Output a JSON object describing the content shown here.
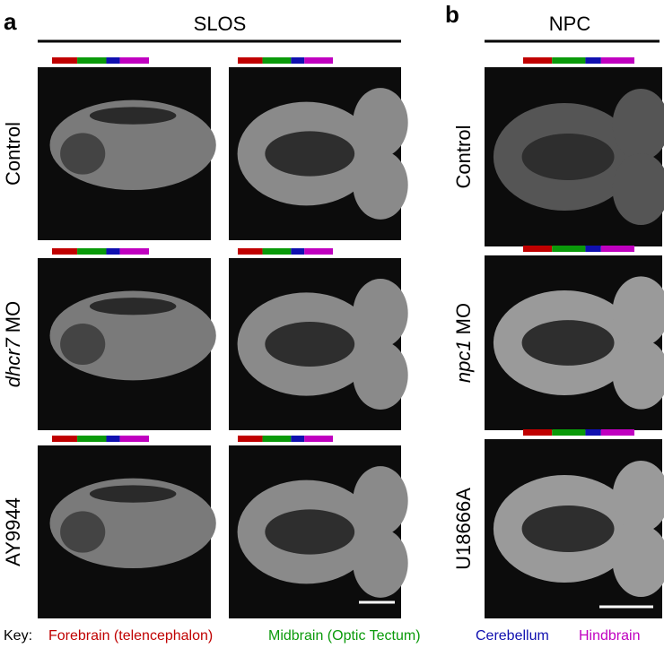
{
  "panels": [
    {
      "label": "a",
      "title": "SLOS",
      "rows": [
        {
          "label": "Control"
        },
        {
          "gene": "dhcr7",
          "suffix": "MO"
        },
        {
          "label": "AY9944"
        }
      ]
    },
    {
      "label": "b",
      "title": "NPC",
      "rows": [
        {
          "label": "Control"
        },
        {
          "gene": "npc1",
          "suffix": "MO"
        },
        {
          "label": "U18666A"
        }
      ]
    }
  ],
  "key": {
    "label": "Key:",
    "items": [
      {
        "text": "Forebrain (telencephalon)",
        "color": "#c00000"
      },
      {
        "text": "Midbrain (Optic Tectum)",
        "color": "#0a9a0a"
      },
      {
        "text": "Cerebellum",
        "color": "#1010b0"
      },
      {
        "text": "Hindbrain",
        "color": "#c000c0"
      }
    ]
  }
}
